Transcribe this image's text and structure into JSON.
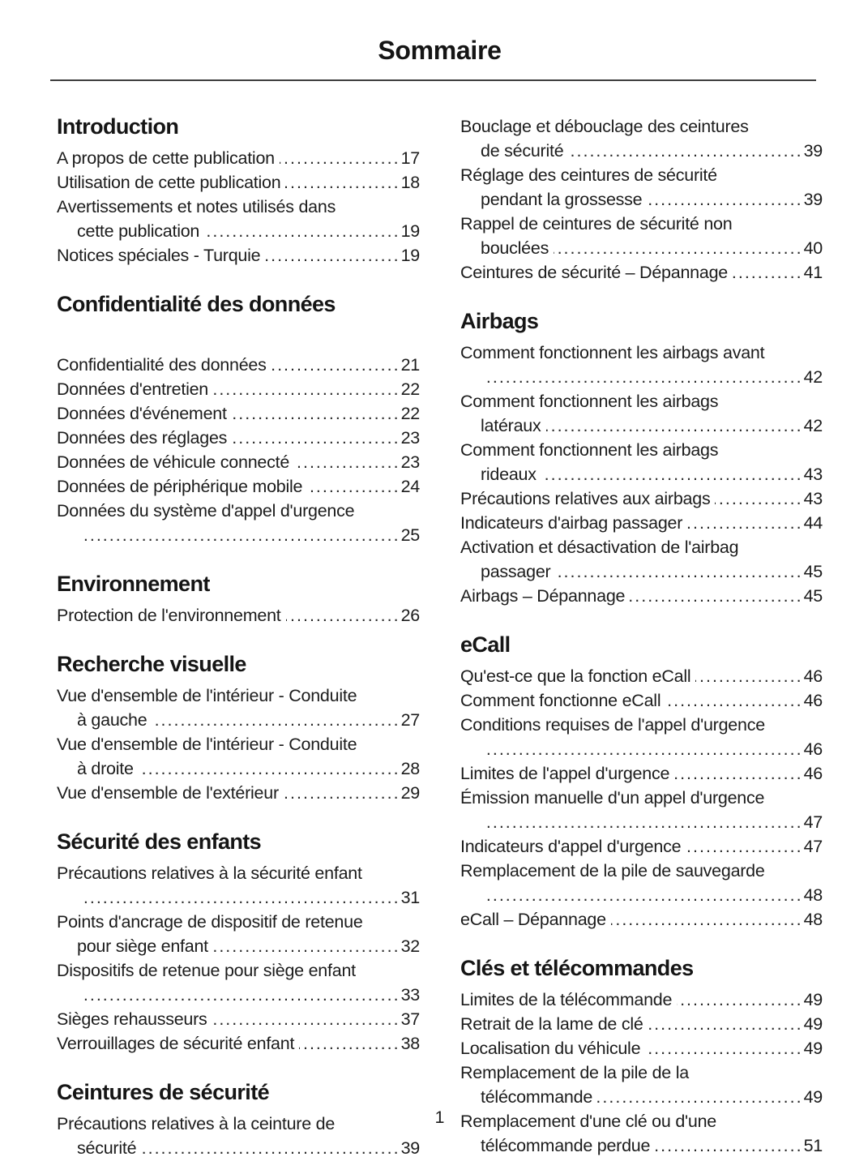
{
  "header": {
    "title": "Sommaire"
  },
  "footer": {
    "page_number": "1"
  },
  "colors": {
    "text": "#1c1c1c",
    "background": "#ffffff"
  },
  "toc": {
    "columns": [
      {
        "sections": [
          {
            "heading": "Introduction",
            "extra_gap": false,
            "entries": [
              {
                "lines": [
                  "A propos de cette publication"
                ],
                "page": "17"
              },
              {
                "lines": [
                  "Utilisation de cette publication"
                ],
                "page": "18"
              },
              {
                "lines": [
                  "Avertissements et notes utilisés dans",
                  "cette publication"
                ],
                "page": "19"
              },
              {
                "lines": [
                  "Notices spéciales - Turquie"
                ],
                "page": "19"
              }
            ]
          },
          {
            "heading": "Confidentialité des données",
            "extra_gap": true,
            "entries": [
              {
                "lines": [
                  "Confidentialité des données"
                ],
                "page": "21"
              },
              {
                "lines": [
                  "Données d'entretien"
                ],
                "page": "22"
              },
              {
                "lines": [
                  "Données d'événement"
                ],
                "page": "22"
              },
              {
                "lines": [
                  "Données des réglages"
                ],
                "page": "23"
              },
              {
                "lines": [
                  "Données de véhicule connecté"
                ],
                "page": "23"
              },
              {
                "lines": [
                  "Données de périphérique mobile"
                ],
                "page": "24"
              },
              {
                "lines": [
                  "Données du système d'appel d'urgence",
                  ""
                ],
                "page": "25"
              }
            ]
          },
          {
            "heading": "Environnement",
            "extra_gap": false,
            "entries": [
              {
                "lines": [
                  "Protection de l'environnement"
                ],
                "page": "26"
              }
            ]
          },
          {
            "heading": "Recherche visuelle",
            "extra_gap": false,
            "entries": [
              {
                "lines": [
                  "Vue d'ensemble de l'intérieur - Conduite",
                  "à gauche"
                ],
                "page": "27"
              },
              {
                "lines": [
                  "Vue d'ensemble de l'intérieur - Conduite",
                  "à droite"
                ],
                "page": "28"
              },
              {
                "lines": [
                  "Vue d'ensemble de l'extérieur"
                ],
                "page": "29"
              }
            ]
          },
          {
            "heading": "Sécurité des enfants",
            "extra_gap": false,
            "entries": [
              {
                "lines": [
                  "Précautions relatives à la sécurité enfant",
                  ""
                ],
                "page": "31"
              },
              {
                "lines": [
                  "Points d'ancrage de dispositif de retenue",
                  "pour siège enfant"
                ],
                "page": "32"
              },
              {
                "lines": [
                  "Dispositifs de retenue pour siège enfant",
                  ""
                ],
                "page": "33"
              },
              {
                "lines": [
                  "Sièges rehausseurs"
                ],
                "page": "37"
              },
              {
                "lines": [
                  "Verrouillages de sécurité enfant"
                ],
                "page": "38"
              }
            ]
          },
          {
            "heading": "Ceintures de sécurité",
            "extra_gap": false,
            "entries": [
              {
                "lines": [
                  "Précautions relatives à la ceinture de",
                  "sécurité"
                ],
                "page": "39"
              }
            ]
          }
        ]
      },
      {
        "sections": [
          {
            "heading": "",
            "extra_gap": false,
            "entries": [
              {
                "lines": [
                  "Bouclage et débouclage des ceintures",
                  "de sécurité"
                ],
                "page": "39"
              },
              {
                "lines": [
                  "Réglage des ceintures de sécurité",
                  "pendant la grossesse"
                ],
                "page": "39"
              },
              {
                "lines": [
                  "Rappel de ceintures de sécurité non",
                  "bouclées"
                ],
                "page": "40"
              },
              {
                "lines": [
                  "Ceintures de sécurité – Dépannage"
                ],
                "page": "41"
              }
            ]
          },
          {
            "heading": "Airbags",
            "extra_gap": false,
            "entries": [
              {
                "lines": [
                  "Comment fonctionnent les airbags avant",
                  ""
                ],
                "page": "42"
              },
              {
                "lines": [
                  "Comment fonctionnent les airbags",
                  "latéraux"
                ],
                "page": "42"
              },
              {
                "lines": [
                  "Comment fonctionnent les airbags",
                  "rideaux"
                ],
                "page": "43"
              },
              {
                "lines": [
                  "Précautions relatives aux airbags"
                ],
                "page": "43"
              },
              {
                "lines": [
                  "Indicateurs d'airbag passager"
                ],
                "page": "44"
              },
              {
                "lines": [
                  "Activation et désactivation de l'airbag",
                  "passager"
                ],
                "page": "45"
              },
              {
                "lines": [
                  "Airbags – Dépannage"
                ],
                "page": "45"
              }
            ]
          },
          {
            "heading": "eCall",
            "extra_gap": false,
            "entries": [
              {
                "lines": [
                  "Qu'est-ce que la fonction eCall"
                ],
                "page": "46"
              },
              {
                "lines": [
                  "Comment fonctionne eCall"
                ],
                "page": "46"
              },
              {
                "lines": [
                  "Conditions requises de l'appel d'urgence",
                  ""
                ],
                "page": "46"
              },
              {
                "lines": [
                  "Limites de l'appel d'urgence"
                ],
                "page": "46"
              },
              {
                "lines": [
                  "Émission manuelle d'un appel d'urgence",
                  ""
                ],
                "page": "47"
              },
              {
                "lines": [
                  "Indicateurs d'appel d'urgence"
                ],
                "page": "47"
              },
              {
                "lines": [
                  "Remplacement de la pile de sauvegarde",
                  ""
                ],
                "page": "48"
              },
              {
                "lines": [
                  "eCall – Dépannage"
                ],
                "page": "48"
              }
            ]
          },
          {
            "heading": "Clés et télécommandes",
            "extra_gap": false,
            "entries": [
              {
                "lines": [
                  "Limites de la télécommande"
                ],
                "page": "49"
              },
              {
                "lines": [
                  "Retrait de la lame de clé"
                ],
                "page": "49"
              },
              {
                "lines": [
                  "Localisation du véhicule"
                ],
                "page": "49"
              },
              {
                "lines": [
                  "Remplacement de la pile de la",
                  "télécommande"
                ],
                "page": "49"
              },
              {
                "lines": [
                  "Remplacement d'une clé ou d'une",
                  "télécommande perdue"
                ],
                "page": "51"
              }
            ]
          }
        ]
      }
    ]
  }
}
